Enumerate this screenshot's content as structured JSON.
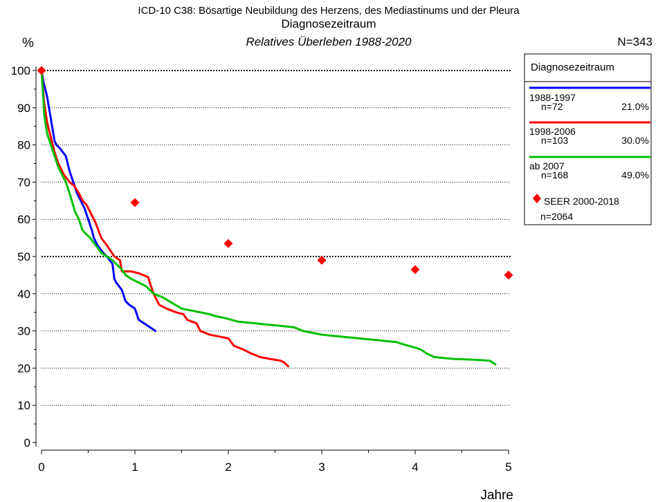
{
  "chart_data": {
    "type": "line",
    "title": "ICD-10 C38: Bösartige Neubildung des Herzens, des Mediastinums und der Pleura",
    "subtitle": "Diagnosezeitraum",
    "subtitle2": "Relatives Überleben 1988-2020",
    "n_total": "N=343",
    "ylabel": "%",
    "xlabel": "Jahre",
    "xlim": [
      0,
      5
    ],
    "ylim": [
      0,
      100
    ],
    "xticks": [
      0,
      1,
      2,
      3,
      4,
      5
    ],
    "yticks": [
      0,
      10,
      20,
      30,
      40,
      50,
      60,
      70,
      80,
      90,
      100
    ],
    "grid": "horizontal",
    "legend": {
      "title": "Diagnosezeitraum",
      "placement": "right",
      "seer_label": "SEER 2000-2018",
      "seer_n": "n=2064"
    },
    "series": [
      {
        "name": "1988-1997",
        "n": "n=72",
        "share": "21.0%",
        "color": "#0000ff",
        "x": [
          0,
          0.02,
          0.04,
          0.06,
          0.08,
          0.1,
          0.12,
          0.14,
          0.16,
          0.2,
          0.26,
          0.3,
          0.34,
          0.38,
          0.42,
          0.46,
          0.5,
          0.54,
          0.56,
          0.6,
          0.66,
          0.7,
          0.76,
          0.78,
          0.8,
          0.86,
          0.9,
          0.94,
          1.0,
          1.04,
          1.1,
          1.16,
          1.22
        ],
        "y": [
          100,
          97,
          95,
          93,
          90,
          87,
          84,
          81,
          80,
          79,
          77,
          73,
          70,
          67,
          65,
          63,
          60,
          57,
          55,
          53,
          51,
          50,
          48,
          44,
          43,
          41,
          38,
          37,
          36,
          33,
          32,
          31,
          30
        ]
      },
      {
        "name": "1998-2006",
        "n": "n=103",
        "share": "30.0%",
        "color": "#ff0000",
        "x": [
          0,
          0.03,
          0.06,
          0.1,
          0.14,
          0.18,
          0.24,
          0.3,
          0.35,
          0.4,
          0.44,
          0.48,
          0.52,
          0.58,
          0.64,
          0.7,
          0.78,
          0.84,
          0.86,
          0.9,
          0.96,
          1.04,
          1.14,
          1.2,
          1.26,
          1.34,
          1.44,
          1.52,
          1.56,
          1.66,
          1.7,
          1.8,
          1.9,
          2.0,
          2.06,
          2.16,
          2.24,
          2.34,
          2.44,
          2.56,
          2.6,
          2.64
        ],
        "y": [
          100,
          91,
          86,
          82,
          78,
          75,
          72,
          70,
          69,
          67,
          65,
          64,
          62,
          59,
          55,
          53,
          50,
          49,
          46,
          46,
          46,
          45.5,
          44.5,
          40,
          37,
          36,
          35,
          34.5,
          33,
          32,
          30,
          29,
          28.5,
          28,
          26,
          25,
          24,
          23,
          22.5,
          22,
          21.5,
          20.5
        ]
      },
      {
        "name": "ab 2007",
        "n": "n=168",
        "share": "49.0%",
        "color": "#00c000",
        "x": [
          0,
          0.03,
          0.06,
          0.1,
          0.14,
          0.18,
          0.22,
          0.26,
          0.3,
          0.36,
          0.4,
          0.44,
          0.48,
          0.52,
          0.58,
          0.64,
          0.7,
          0.76,
          0.8,
          0.86,
          0.9,
          0.96,
          1.04,
          1.12,
          1.2,
          1.3,
          1.4,
          1.5,
          1.6,
          1.7,
          1.8,
          1.86,
          1.96,
          2.1,
          2.3,
          2.5,
          2.7,
          2.8,
          3.0,
          3.2,
          3.4,
          3.6,
          3.8,
          3.86,
          4.0,
          4.06,
          4.12,
          4.2,
          4.4,
          4.6,
          4.8,
          4.86
        ],
        "y": [
          100,
          88,
          83,
          80,
          77,
          74,
          72,
          70,
          67,
          62,
          60,
          57,
          56,
          55,
          53,
          51,
          50,
          49,
          48,
          46.5,
          45,
          44,
          43,
          42,
          40,
          39,
          37.5,
          36,
          35.5,
          35,
          34.5,
          34,
          33.5,
          32.5,
          32,
          31.5,
          31,
          30,
          29,
          28.5,
          28,
          27.5,
          27,
          26.5,
          25.5,
          25,
          24,
          23,
          22.5,
          22.3,
          22,
          21
        ]
      }
    ],
    "seer": {
      "name": "SEER 2000-2018",
      "color": "#ff0000",
      "x": [
        0,
        1,
        2,
        3,
        4,
        5
      ],
      "y": [
        100,
        64.5,
        53.5,
        49,
        46.5,
        45
      ]
    }
  }
}
